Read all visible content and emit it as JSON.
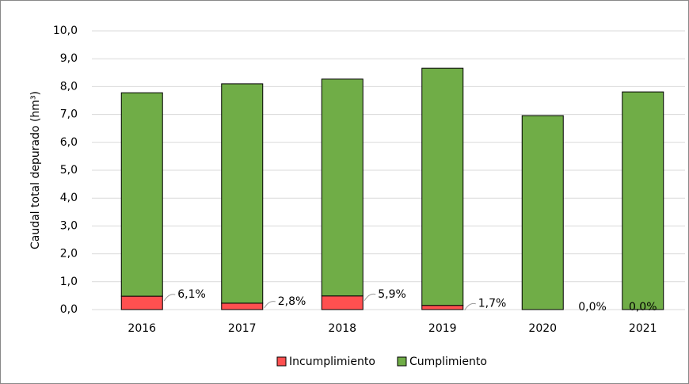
{
  "chart_data": {
    "type": "stacked_bar",
    "y_label": "Caudal total depurado (hm³)",
    "categories": [
      "2016",
      "2017",
      "2018",
      "2019",
      "2020",
      "2021"
    ],
    "series": [
      {
        "name": "Incumplimiento",
        "color": "#ff5050",
        "values": [
          0.48,
          0.23,
          0.49,
          0.15,
          0,
          0
        ]
      },
      {
        "name": "Cumplimiento",
        "color": "#70ad47",
        "values": [
          7.3,
          7.87,
          7.78,
          8.51,
          6.96,
          7.81
        ]
      }
    ],
    "annotations": [
      "6,1%",
      "2,8%",
      "5,9%",
      "1,7%",
      "0,0%",
      "0,0%"
    ],
    "ylim": [
      0,
      10
    ],
    "yticks": [
      {
        "value": 0,
        "label": "0,0"
      },
      {
        "value": 1,
        "label": "1,0"
      },
      {
        "value": 2,
        "label": "2,0"
      },
      {
        "value": 3,
        "label": "3,0"
      },
      {
        "value": 4,
        "label": "4,0"
      },
      {
        "value": 5,
        "label": "5,0"
      },
      {
        "value": 6,
        "label": "6,0"
      },
      {
        "value": 7,
        "label": "7,0"
      },
      {
        "value": 8,
        "label": "8,0"
      },
      {
        "value": 9,
        "label": "9,0"
      },
      {
        "value": 10,
        "label": "10,0"
      }
    ],
    "grid": true,
    "legend": "bottom"
  }
}
